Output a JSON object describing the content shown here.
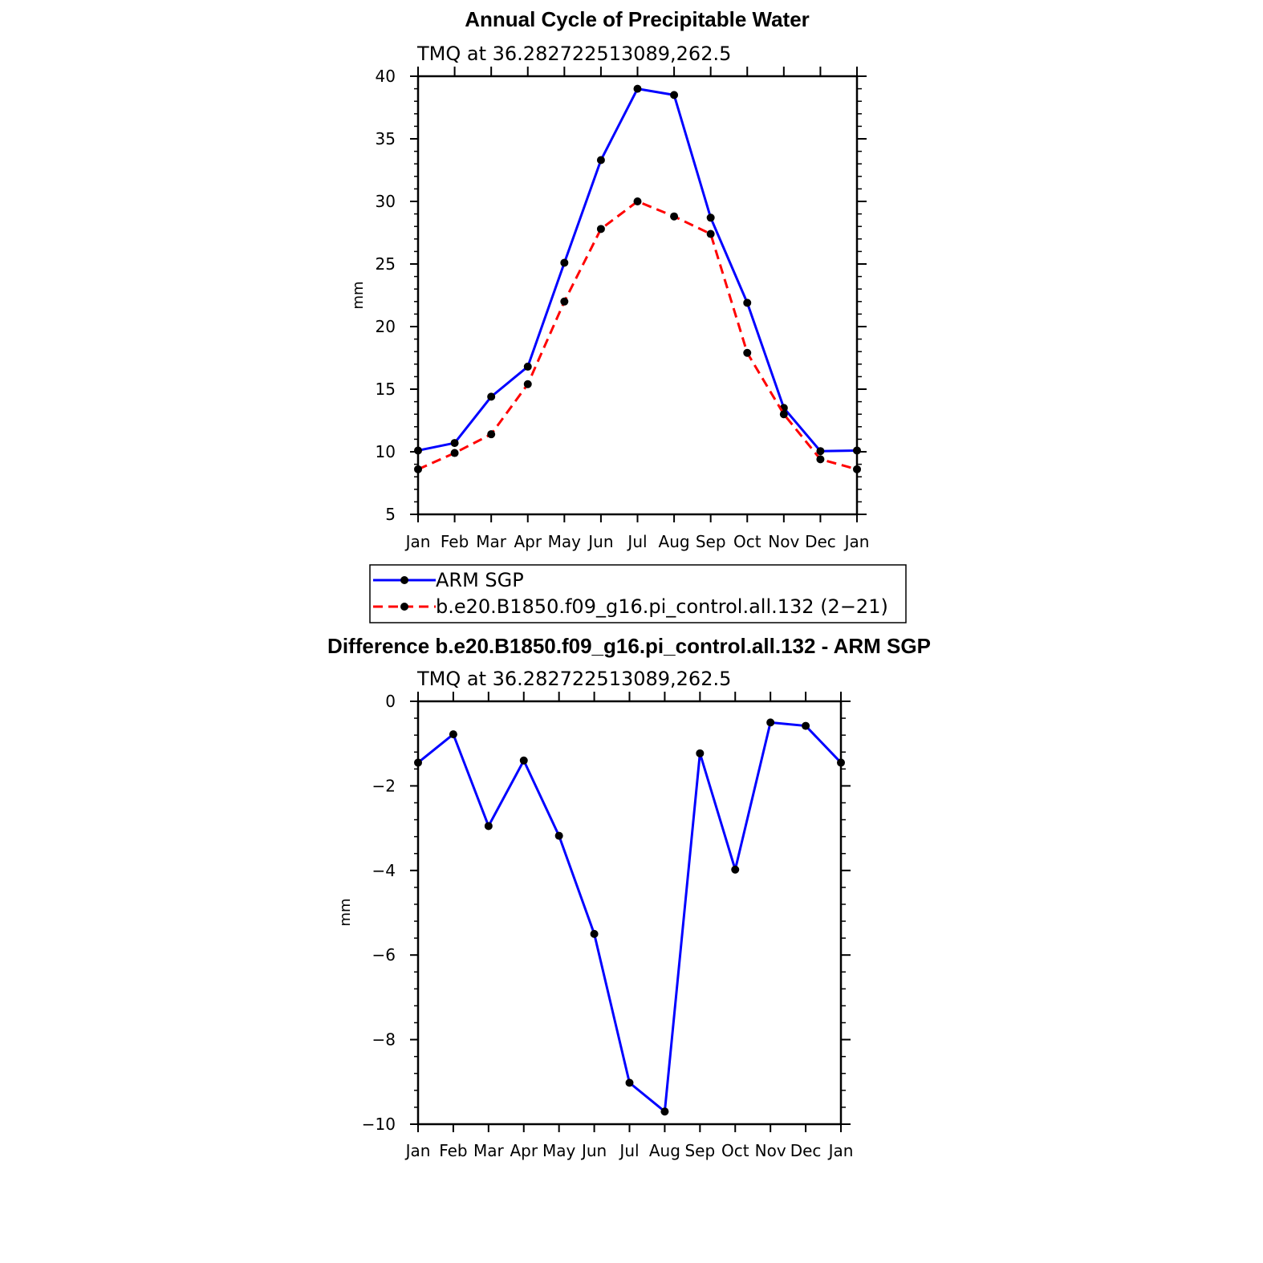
{
  "chart_data": [
    {
      "type": "line",
      "title": "Annual Cycle of Precipitable Water",
      "subtitle": "TMQ at 36.282722513089,262.5",
      "xlabel": "",
      "ylabel": "mm",
      "categories": [
        "Jan",
        "Feb",
        "Mar",
        "Apr",
        "May",
        "Jun",
        "Jul",
        "Aug",
        "Sep",
        "Oct",
        "Nov",
        "Dec",
        "Jan"
      ],
      "ylim": [
        5,
        40
      ],
      "yticks": [
        5,
        10,
        15,
        20,
        25,
        30,
        35,
        40
      ],
      "grid": false,
      "legend_position": "bottom",
      "series": [
        {
          "name": "ARM SGP",
          "color": "#0000ff",
          "dash": "solid",
          "values": [
            10.1,
            10.7,
            14.4,
            16.8,
            25.1,
            33.3,
            39.0,
            38.5,
            28.7,
            21.9,
            13.5,
            10.05,
            10.1
          ]
        },
        {
          "name": "b.e20.B1850.f09_g16.pi_control.all.132 (2−21)",
          "color": "#ff0000",
          "dash": "dashed",
          "values": [
            8.6,
            9.9,
            11.4,
            15.4,
            22.0,
            27.8,
            30.0,
            28.8,
            27.4,
            17.9,
            13.0,
            9.4,
            8.6
          ]
        }
      ]
    },
    {
      "type": "line",
      "title": "Difference b.e20.B1850.f09_g16.pi_control.all.132 - ARM SGP",
      "subtitle": "TMQ at 36.282722513089,262.5",
      "xlabel": "",
      "ylabel": "mm",
      "categories": [
        "Jan",
        "Feb",
        "Mar",
        "Apr",
        "May",
        "Jun",
        "Jul",
        "Aug",
        "Sep",
        "Oct",
        "Nov",
        "Dec",
        "Jan"
      ],
      "ylim": [
        -10,
        0
      ],
      "yticks": [
        -10,
        -8,
        -6,
        -4,
        -2,
        0
      ],
      "ytick_labels": [
        "−10",
        "−8",
        "−6",
        "−4",
        "−2",
        "0"
      ],
      "grid": false,
      "series": [
        {
          "name": "Difference",
          "color": "#0000ff",
          "dash": "solid",
          "values": [
            -1.45,
            -0.78,
            -2.95,
            -1.4,
            -3.18,
            -5.5,
            -9.02,
            -9.7,
            -1.23,
            -3.98,
            -0.5,
            -0.58,
            -1.45
          ]
        }
      ]
    }
  ]
}
